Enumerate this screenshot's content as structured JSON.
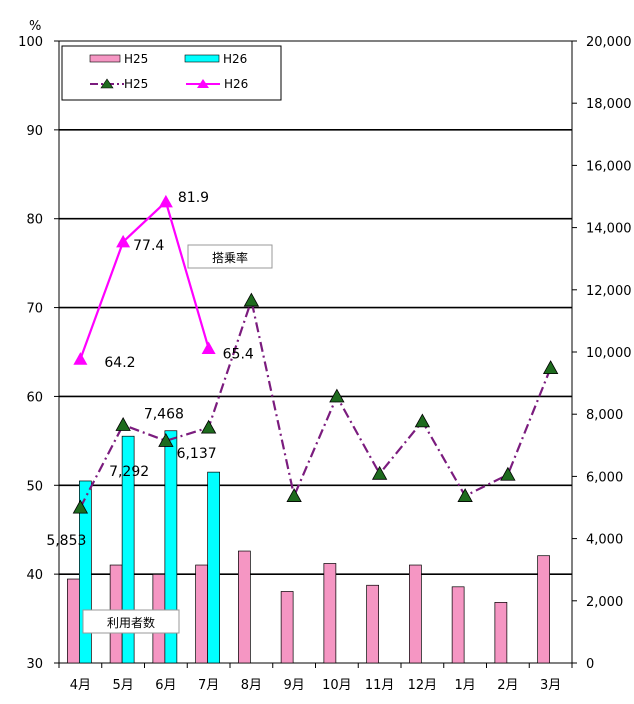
{
  "chart_data": {
    "type": "bar+line",
    "categories": [
      "4月",
      "5月",
      "6月",
      "7月",
      "8月",
      "9月",
      "10月",
      "11月",
      "12月",
      "1月",
      "2月",
      "3月"
    ],
    "left_axis": {
      "label": "%",
      "min": 30,
      "max": 100,
      "ticks": [
        30,
        40,
        50,
        60,
        70,
        80,
        90,
        100
      ]
    },
    "right_axis": {
      "min": 0,
      "max": 20000,
      "ticks": [
        0,
        2000,
        4000,
        6000,
        8000,
        10000,
        12000,
        14000,
        16000,
        18000,
        20000
      ],
      "tick_labels": [
        "0",
        "2,000",
        "4,000",
        "6,000",
        "8,000",
        "10,000",
        "12,000",
        "14,000",
        "16,000",
        "18,000",
        "20,000"
      ]
    },
    "grid": true,
    "bar_series": [
      {
        "name": "H25",
        "axis": "right",
        "color": "#f596c3",
        "values": [
          2700,
          3150,
          2850,
          3150,
          3600,
          2300,
          3200,
          2500,
          3150,
          2450,
          1950,
          3450
        ]
      },
      {
        "name": "H26",
        "axis": "right",
        "color": "#00ffff",
        "values": [
          5853,
          7292,
          7468,
          6137,
          null,
          null,
          null,
          null,
          null,
          null,
          null,
          null
        ]
      }
    ],
    "line_series": [
      {
        "name": "H25",
        "axis": "left",
        "color": "#7b1c7e",
        "marker_color": "#1e6b1e",
        "values": [
          47.5,
          56.8,
          55.0,
          56.5,
          70.8,
          48.8,
          60.0,
          51.3,
          57.2,
          48.8,
          51.2,
          63.2
        ]
      },
      {
        "name": "H26",
        "axis": "left",
        "color": "#ff00ff",
        "marker_color": "#ff00ff",
        "values": [
          64.2,
          77.4,
          81.9,
          65.4,
          null,
          null,
          null,
          null,
          null,
          null,
          null,
          null
        ]
      }
    ],
    "bar_labels": [
      "5,853",
      "7,292",
      "7,468",
      "6,137"
    ],
    "line_labels": [
      "64.2",
      "77.4",
      "81.9",
      "65.4"
    ],
    "annotations": {
      "line_box": "搭乗率",
      "bar_box": "利用者数"
    },
    "legend": {
      "placement": "top-left",
      "entries": [
        "H25",
        "H26",
        "H25",
        "H26"
      ]
    }
  }
}
